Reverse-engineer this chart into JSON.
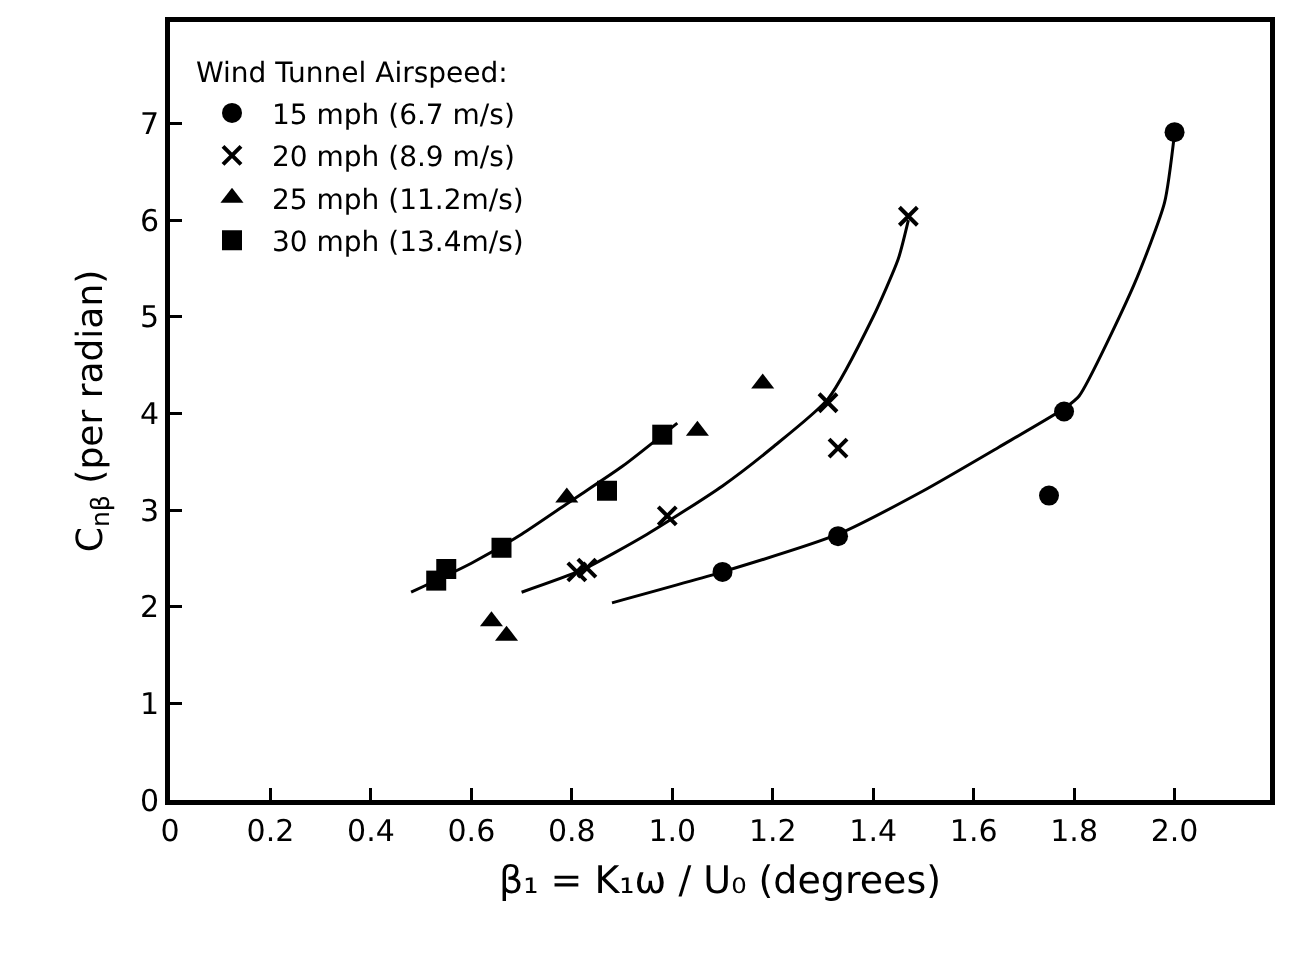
{
  "chart_data": {
    "type": "scatter",
    "xlabel": "β₁ = K₁ω / U₀ (degrees)",
    "ylabel": "C$_{nβ}$ (per radian)",
    "legend_title": "Wind Tunnel Airspeed:",
    "legend": "top left",
    "grid": false,
    "xlim": [
      0,
      2.19
    ],
    "ylim": [
      0,
      8.05
    ],
    "xticks": [
      0,
      0.2,
      0.4,
      0.6,
      0.8,
      {
        "value": 1,
        "label": "1.0"
      },
      1.2,
      1.4,
      1.6,
      1.8,
      {
        "value": 2,
        "label": "2.0"
      }
    ],
    "yticks": [
      0,
      1,
      2,
      3,
      4,
      5,
      6,
      7
    ],
    "series": [
      {
        "name": "15 mph (6.7 m/s)",
        "color": "#000000",
        "marker": "circle",
        "x": [
          1.1,
          1.33,
          1.75,
          1.78,
          2.0
        ],
        "values": [
          2.36,
          2.73,
          3.15,
          4.02,
          6.91
        ]
      },
      {
        "name": "20 mph (8.9 m/s)",
        "color": "#000000",
        "marker": "cross",
        "x": [
          0.81,
          0.83,
          0.99,
          1.31,
          1.33,
          1.47
        ],
        "values": [
          2.36,
          2.4,
          2.94,
          4.11,
          3.64,
          6.04
        ]
      },
      {
        "name": "25 mph (11.2m/s)",
        "color": "#000000",
        "marker": "triangle",
        "x": [
          0.64,
          0.67,
          0.79,
          1.05,
          1.18
        ],
        "values": [
          1.85,
          1.7,
          3.13,
          3.82,
          4.31
        ]
      },
      {
        "name": "30 mph (13.4m/s)",
        "color": "#000000",
        "marker": "square",
        "x": [
          0.53,
          0.55,
          0.66,
          0.87,
          0.98
        ],
        "values": [
          2.27,
          2.39,
          2.61,
          3.2,
          3.78
        ]
      },
      {
        "type": "line",
        "color": "#000000",
        "marker": "none",
        "line_style": "solid",
        "x": [
          0.48,
          0.6,
          0.7,
          0.8,
          0.9,
          1.01
        ],
        "values": [
          2.15,
          2.45,
          2.75,
          3.1,
          3.45,
          3.9
        ]
      },
      {
        "type": "line",
        "color": "#000000",
        "marker": "none",
        "line_style": "solid",
        "x": [
          0.7,
          0.82,
          0.95,
          1.1,
          1.2,
          1.31,
          1.4,
          1.45,
          1.47
        ],
        "values": [
          2.15,
          2.38,
          2.75,
          3.25,
          3.65,
          4.15,
          5.0,
          5.6,
          6.0
        ]
      },
      {
        "type": "line",
        "color": "#000000",
        "marker": "none",
        "line_style": "solid",
        "x": [
          0.88,
          1.1,
          1.33,
          1.5,
          1.65,
          1.78,
          1.81,
          1.92,
          1.98,
          2.0
        ],
        "values": [
          2.04,
          2.36,
          2.75,
          3.2,
          3.65,
          4.05,
          4.18,
          5.34,
          6.18,
          6.9
        ]
      }
    ]
  }
}
